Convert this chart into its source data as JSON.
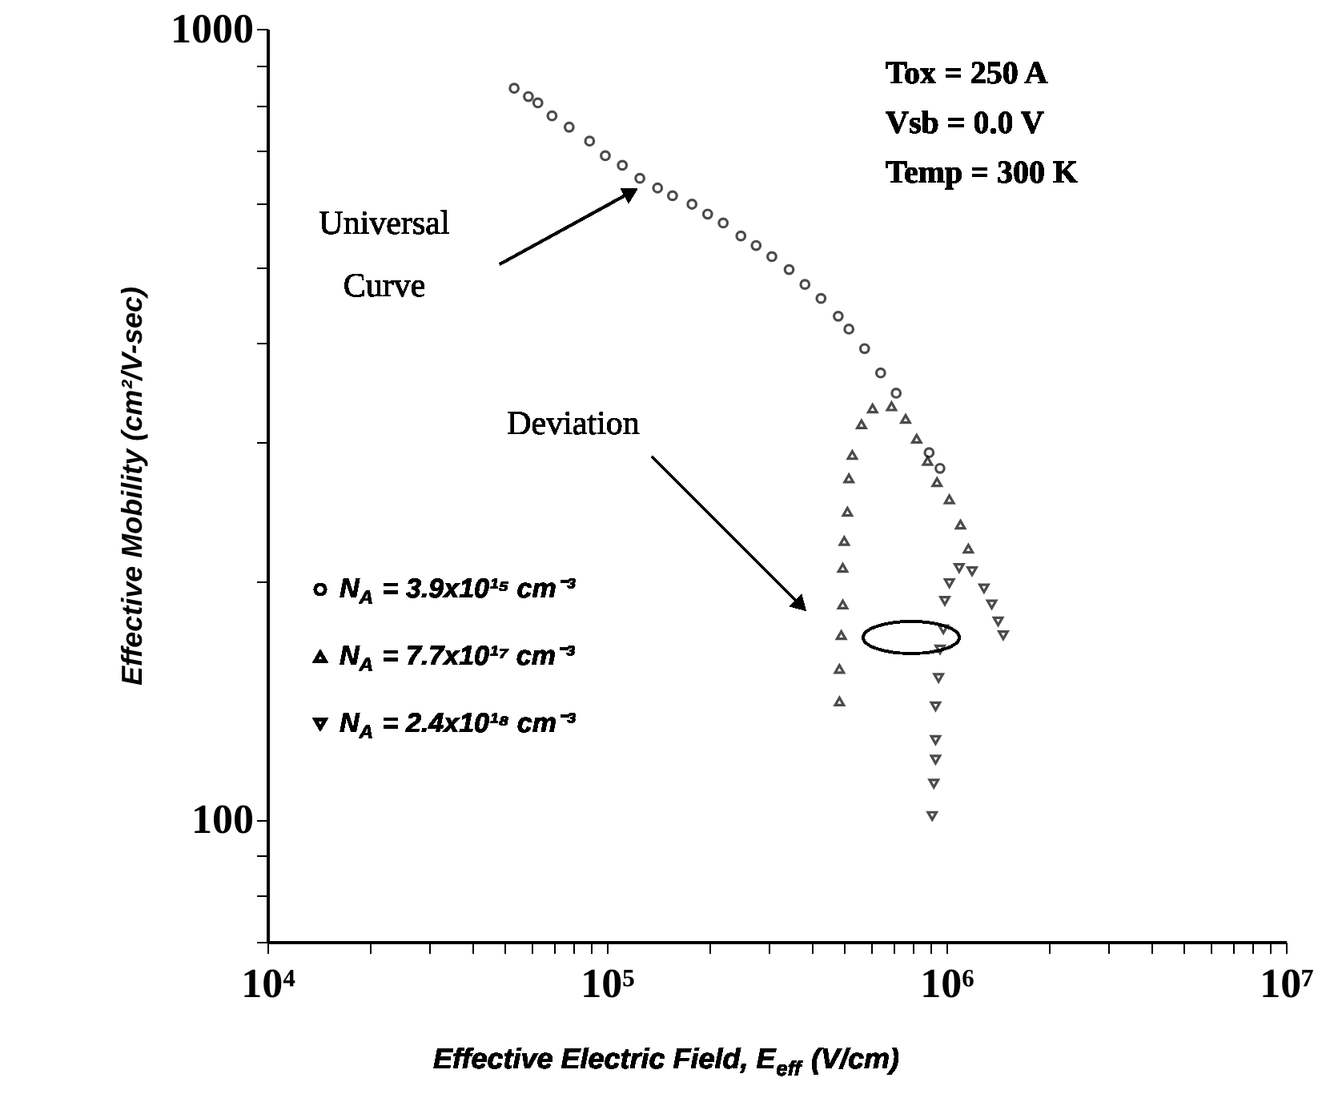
{
  "chart_data": {
    "type": "scatter",
    "xlabel": "Effective Electric Field, E$_{eff}$ (V/cm)",
    "ylabel": "Effective Mobility (cm²/V-sec)",
    "log": "xy",
    "xlim": [
      10000,
      10000000
    ],
    "ylim": [
      70,
      1000
    ],
    "legend": "left",
    "xticks": [
      {
        "value": 10000,
        "label": "10⁴"
      },
      {
        "value": 20000,
        "label": null
      },
      {
        "value": 30000,
        "label": null
      },
      {
        "value": 40000,
        "label": null
      },
      {
        "value": 50000,
        "label": null
      },
      {
        "value": 60000,
        "label": null
      },
      {
        "value": 70000,
        "label": null
      },
      {
        "value": 80000,
        "label": null
      },
      {
        "value": 90000,
        "label": null
      },
      {
        "value": 100000,
        "label": "10⁵"
      },
      {
        "value": 200000,
        "label": null
      },
      {
        "value": 300000,
        "label": null
      },
      {
        "value": 400000,
        "label": null
      },
      {
        "value": 500000,
        "label": null
      },
      {
        "value": 600000,
        "label": null
      },
      {
        "value": 700000,
        "label": null
      },
      {
        "value": 800000,
        "label": null
      },
      {
        "value": 900000,
        "label": null
      },
      {
        "value": 1000000,
        "label": "10⁶"
      },
      {
        "value": 2000000,
        "label": null
      },
      {
        "value": 3000000,
        "label": null
      },
      {
        "value": 4000000,
        "label": null
      },
      {
        "value": 5000000,
        "label": null
      },
      {
        "value": 6000000,
        "label": null
      },
      {
        "value": 7000000,
        "label": null
      },
      {
        "value": 8000000,
        "label": null
      },
      {
        "value": 9000000,
        "label": null
      },
      {
        "value": 10000000,
        "label": "10⁷"
      }
    ],
    "yticks": [
      {
        "value": 70,
        "label": null
      },
      {
        "value": 80,
        "label": null
      },
      {
        "value": 90,
        "label": null
      },
      100,
      {
        "value": 200,
        "label": null
      },
      {
        "value": 300,
        "label": null
      },
      {
        "value": 400,
        "label": null
      },
      {
        "value": 500,
        "label": null
      },
      {
        "value": 600,
        "label": null
      },
      {
        "value": 700,
        "label": null
      },
      {
        "value": 800,
        "label": null
      },
      {
        "value": 900,
        "label": null
      },
      1000
    ],
    "annotations": [
      "Universal Curve",
      "Deviation",
      "Tox = 250 A",
      "Vsb = 0.0 V",
      "Temp = 300 K"
    ],
    "series": [
      {
        "name": "N$_{A}$ = 3.9x10¹⁵ cm⁻³",
        "color": "#000000",
        "marker": "circle",
        "x": [
          53300,
          58700,
          62600,
          68900,
          77400,
          88900,
          98900,
          111000,
          125000,
          141000,
          156000,
          178000,
          198000,
          220000,
          248000,
          275000,
          306000,
          344000,
          383000,
          427000,
          480000,
          516000,
          574000,
          640000,
          711000,
          889000,
          957000
        ],
        "values": [
          841,
          821,
          806,
          776,
          751,
          721,
          691,
          672,
          647,
          629,
          615,
          600,
          583,
          568,
          547,
          532,
          515,
          496,
          475,
          456,
          433,
          417,
          394,
          367,
          346,
          291,
          278
        ]
      },
      {
        "name": "N$_{A}$ = 7.7x10¹⁷ cm⁻³",
        "color": "#000000",
        "marker": "triangle",
        "x": [
          484000,
          484000,
          490000,
          495000,
          495000,
          500000,
          511000,
          516000,
          528000,
          562000,
          606000,
          689000,
          758000,
          817000,
          880000,
          938000,
          1020000,
          1100000,
          1160000
        ],
        "values": [
          141,
          155,
          171,
          187,
          208,
          225,
          245,
          270,
          289,
          316,
          331,
          333,
          321,
          303,
          284,
          267,
          254,
          236,
          220
        ]
      },
      {
        "name": "N$_{A}$ = 2.4x10¹⁸ cm⁻³",
        "color": "#000000",
        "marker": "triangle-down",
        "x": [
          908000,
          918000,
          929000,
          929000,
          929000,
          948000,
          958000,
          979000,
          989000,
          1020000,
          1090000,
          1190000,
          1290000,
          1360000,
          1420000,
          1470000
        ],
        "values": [
          101,
          111,
          119,
          126,
          139,
          151,
          164,
          174,
          189,
          199,
          208,
          206,
          196,
          187,
          178,
          171
        ]
      }
    ]
  }
}
